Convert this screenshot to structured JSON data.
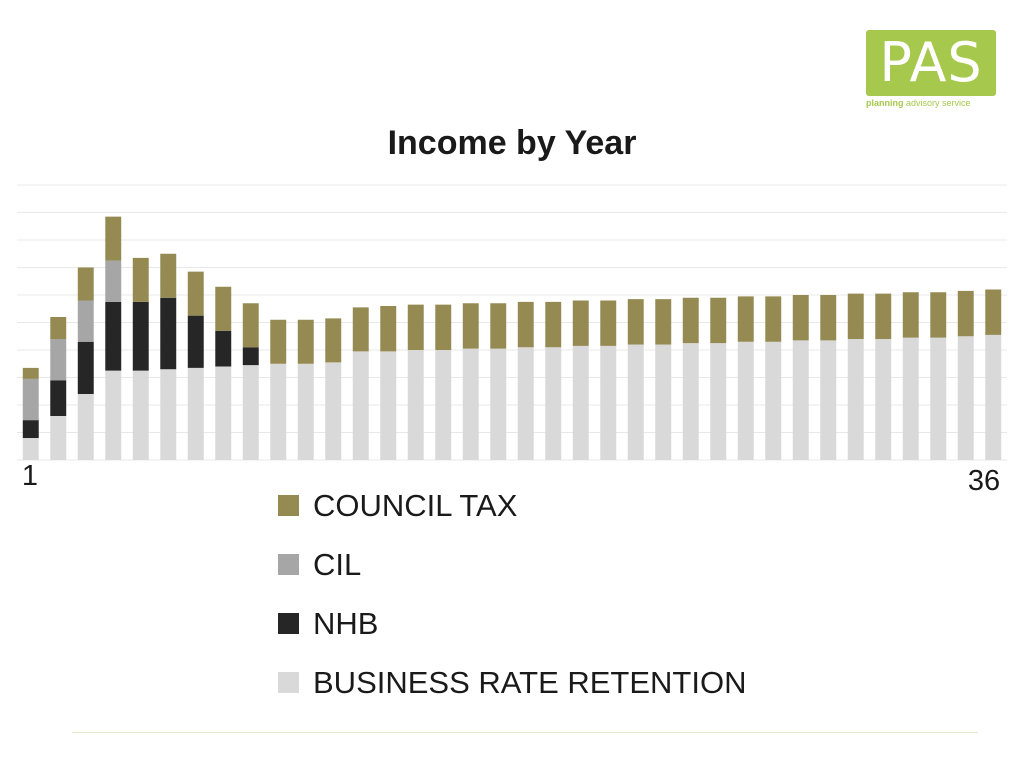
{
  "logo": {
    "text": "PAS",
    "subtitle_bold": "planning",
    "subtitle_rest": " advisory service",
    "color": "#a6c84c"
  },
  "chart_data": {
    "type": "bar",
    "stacked": true,
    "title": "Income by Year",
    "categories": [
      "1",
      "2",
      "3",
      "4",
      "5",
      "6",
      "7",
      "8",
      "9",
      "10",
      "11",
      "12",
      "13",
      "14",
      "15",
      "16",
      "17",
      "18",
      "19",
      "20",
      "21",
      "22",
      "23",
      "24",
      "25",
      "26",
      "27",
      "28",
      "29",
      "30",
      "31",
      "32",
      "33",
      "34",
      "35",
      "36"
    ],
    "tick_labels": {
      "first": "1",
      "last": "36"
    },
    "grid": true,
    "gridline_count": 10,
    "ylim": [
      0,
      100
    ],
    "legend_position": "bottom",
    "series": [
      {
        "name": "BUSINESS RATE RETENTION",
        "color": "#d9d9d9",
        "values": [
          8,
          16,
          24,
          32.5,
          32.5,
          33,
          33.5,
          34,
          34.5,
          35,
          35,
          35.5,
          39.5,
          39.5,
          40,
          40,
          40.5,
          40.5,
          41,
          41,
          41.5,
          41.5,
          42,
          42,
          42.5,
          42.5,
          43,
          43,
          43.5,
          43.5,
          44,
          44,
          44.5,
          44.5,
          45,
          45.5
        ]
      },
      {
        "name": "NHB",
        "color": "#262626",
        "values": [
          6.5,
          13,
          19,
          25,
          25,
          26,
          19,
          13,
          6.5,
          0,
          0,
          0,
          0,
          0,
          0,
          0,
          0,
          0,
          0,
          0,
          0,
          0,
          0,
          0,
          0,
          0,
          0,
          0,
          0,
          0,
          0,
          0,
          0,
          0,
          0,
          0
        ]
      },
      {
        "name": "CIL",
        "color": "#a6a6a6",
        "values": [
          15,
          15,
          15,
          15,
          0,
          0,
          0,
          0,
          0,
          0,
          0,
          0,
          0,
          0,
          0,
          0,
          0,
          0,
          0,
          0,
          0,
          0,
          0,
          0,
          0,
          0,
          0,
          0,
          0,
          0,
          0,
          0,
          0,
          0,
          0,
          0
        ]
      },
      {
        "name": "COUNCIL TAX",
        "color": "#958a52",
        "values": [
          4,
          8,
          12,
          16,
          16,
          16,
          16,
          16,
          16,
          16,
          16,
          16,
          16,
          16.5,
          16.5,
          16.5,
          16.5,
          16.5,
          16.5,
          16.5,
          16.5,
          16.5,
          16.5,
          16.5,
          16.5,
          16.5,
          16.5,
          16.5,
          16.5,
          16.5,
          16.5,
          16.5,
          16.5,
          16.5,
          16.5,
          16.5
        ]
      }
    ]
  },
  "legend": [
    {
      "label": "COUNCIL TAX",
      "color": "#958a52"
    },
    {
      "label": "CIL",
      "color": "#a6a6a6"
    },
    {
      "label": "NHB",
      "color": "#262626"
    },
    {
      "label": "BUSINESS RATE RETENTION",
      "color": "#d9d9d9"
    }
  ]
}
